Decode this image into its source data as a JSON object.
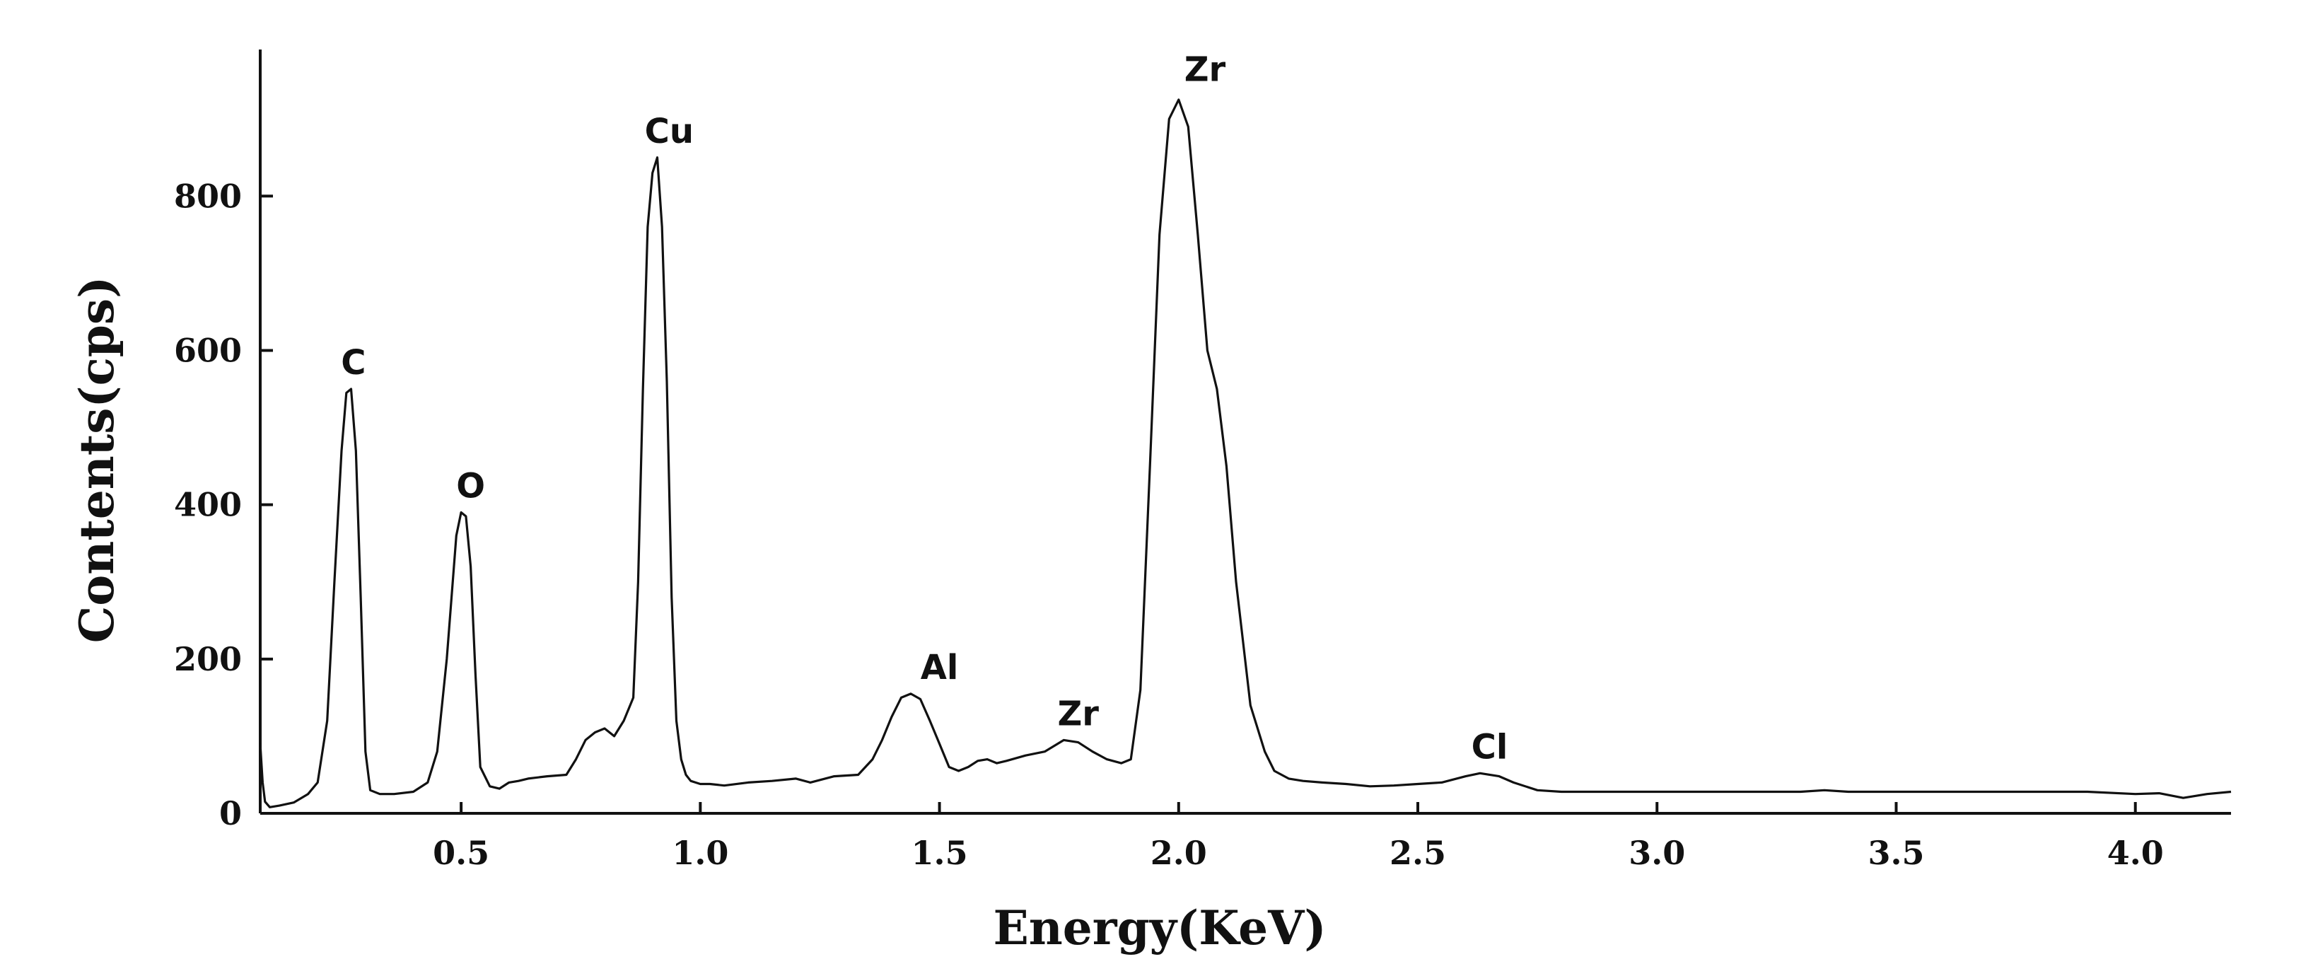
{
  "chart_data": {
    "type": "line",
    "title": "",
    "xlabel": "Energy(KeV)",
    "ylabel": "Contents(cps)",
    "xlim": [
      0.08,
      4.2
    ],
    "ylim": [
      0,
      990
    ],
    "xticks": [
      {
        "value": 0.5,
        "label": "0.5"
      },
      {
        "value": 1.0,
        "label": "1.0"
      },
      {
        "value": 1.5,
        "label": "1.5"
      },
      {
        "value": 2.0,
        "label": "2.0"
      },
      {
        "value": 2.5,
        "label": "2.5"
      },
      {
        "value": 3.0,
        "label": "3.0"
      },
      {
        "value": 3.5,
        "label": "3.5"
      },
      {
        "value": 4.0,
        "label": "4.0"
      }
    ],
    "yticks": [
      {
        "value": 0,
        "label": "0"
      },
      {
        "value": 200,
        "label": "200"
      },
      {
        "value": 400,
        "label": "400"
      },
      {
        "value": 600,
        "label": "600"
      },
      {
        "value": 800,
        "label": "800"
      }
    ],
    "grid": false,
    "line_color": "#111111",
    "series": [
      {
        "x": [
          0.08,
          0.085,
          0.09,
          0.1,
          0.12,
          0.15,
          0.18,
          0.2,
          0.22,
          0.235,
          0.25,
          0.26,
          0.27,
          0.28,
          0.29,
          0.3,
          0.31,
          0.33,
          0.36,
          0.4,
          0.43,
          0.45,
          0.47,
          0.49,
          0.5,
          0.51,
          0.52,
          0.53,
          0.54,
          0.56,
          0.58,
          0.6,
          0.62,
          0.64,
          0.68,
          0.72,
          0.74,
          0.76,
          0.78,
          0.8,
          0.82,
          0.84,
          0.86,
          0.87,
          0.88,
          0.89,
          0.9,
          0.91,
          0.92,
          0.93,
          0.94,
          0.95,
          0.96,
          0.97,
          0.98,
          0.99,
          1.0,
          1.02,
          1.05,
          1.1,
          1.15,
          1.2,
          1.23,
          1.28,
          1.33,
          1.36,
          1.38,
          1.4,
          1.42,
          1.44,
          1.46,
          1.48,
          1.5,
          1.52,
          1.54,
          1.56,
          1.58,
          1.6,
          1.62,
          1.64,
          1.68,
          1.72,
          1.76,
          1.79,
          1.82,
          1.85,
          1.88,
          1.9,
          1.92,
          1.94,
          1.96,
          1.98,
          2.0,
          2.02,
          2.04,
          2.06,
          2.08,
          2.1,
          2.12,
          2.15,
          2.18,
          2.2,
          2.23,
          2.26,
          2.3,
          2.35,
          2.4,
          2.45,
          2.5,
          2.55,
          2.6,
          2.63,
          2.67,
          2.7,
          2.75,
          2.8,
          2.85,
          2.9,
          2.95,
          3.0,
          3.05,
          3.1,
          3.2,
          3.3,
          3.35,
          3.4,
          3.5,
          3.6,
          3.7,
          3.8,
          3.9,
          4.0,
          4.05,
          4.1,
          4.15,
          4.2
        ],
        "values": [
          90,
          40,
          15,
          8,
          10,
          14,
          25,
          40,
          120,
          300,
          470,
          545,
          550,
          470,
          280,
          80,
          30,
          25,
          25,
          28,
          40,
          80,
          200,
          360,
          390,
          385,
          320,
          180,
          60,
          35,
          32,
          40,
          42,
          45,
          48,
          50,
          70,
          95,
          105,
          110,
          100,
          120,
          150,
          300,
          550,
          760,
          830,
          850,
          760,
          560,
          280,
          120,
          70,
          50,
          42,
          40,
          38,
          38,
          36,
          40,
          42,
          45,
          40,
          48,
          50,
          70,
          95,
          125,
          150,
          155,
          148,
          120,
          90,
          60,
          55,
          60,
          68,
          70,
          65,
          68,
          75,
          80,
          95,
          92,
          80,
          70,
          65,
          70,
          160,
          450,
          750,
          900,
          925,
          890,
          750,
          600,
          550,
          450,
          300,
          140,
          80,
          55,
          45,
          42,
          40,
          38,
          35,
          36,
          38,
          40,
          48,
          52,
          48,
          40,
          30,
          28,
          28,
          28,
          28,
          28,
          28,
          28,
          28,
          28,
          30,
          28,
          28,
          28,
          28,
          28,
          28,
          25,
          26,
          20,
          25,
          28
        ]
      }
    ],
    "annotations": [
      {
        "text": "C",
        "x": 0.275,
        "y": 560
      },
      {
        "text": "O",
        "x": 0.52,
        "y": 400
      },
      {
        "text": "Cu",
        "x": 0.935,
        "y": 860
      },
      {
        "text": "Al",
        "x": 1.5,
        "y": 165
      },
      {
        "text": "Zr",
        "x": 1.79,
        "y": 105
      },
      {
        "text": "Zr",
        "x": 2.055,
        "y": 940
      },
      {
        "text": "Cl",
        "x": 2.65,
        "y": 62
      }
    ]
  }
}
